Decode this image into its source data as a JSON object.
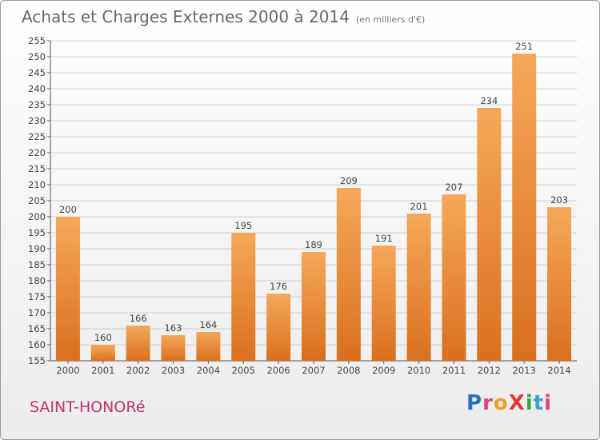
{
  "header": {
    "title": "Achats et Charges Externes 2000 à 2014",
    "subtitle": "(en milliers d'€)"
  },
  "footer": {
    "commune": "SAINT-HONORé",
    "logo": {
      "text": "ProXiti",
      "letter_colors": [
        "#2a6fc0",
        "#e0447a",
        "#f0a020",
        "#e03a3a",
        "#39a844",
        "#3aa0d8",
        "#e0447a"
      ]
    }
  },
  "chart_data": {
    "type": "bar",
    "title": "Achats et Charges Externes 2000 à 2014",
    "subtitle": "(en milliers d'€)",
    "xlabel": "",
    "ylabel": "",
    "categories": [
      "2000",
      "2001",
      "2002",
      "2003",
      "2004",
      "2005",
      "2006",
      "2007",
      "2008",
      "2009",
      "2010",
      "2011",
      "2012",
      "2013",
      "2014"
    ],
    "values": [
      200,
      160,
      166,
      163,
      164,
      195,
      176,
      189,
      209,
      191,
      201,
      207,
      234,
      251,
      203
    ],
    "ylim": [
      155,
      255
    ],
    "yticks": [
      155,
      160,
      165,
      170,
      175,
      180,
      185,
      190,
      195,
      200,
      205,
      210,
      215,
      220,
      225,
      230,
      235,
      240,
      245,
      250,
      255
    ],
    "grid": true,
    "bar_color_light": "#f6a85a",
    "bar_color_dark": "#d9701e",
    "grid_color": "#d0d0d0"
  }
}
